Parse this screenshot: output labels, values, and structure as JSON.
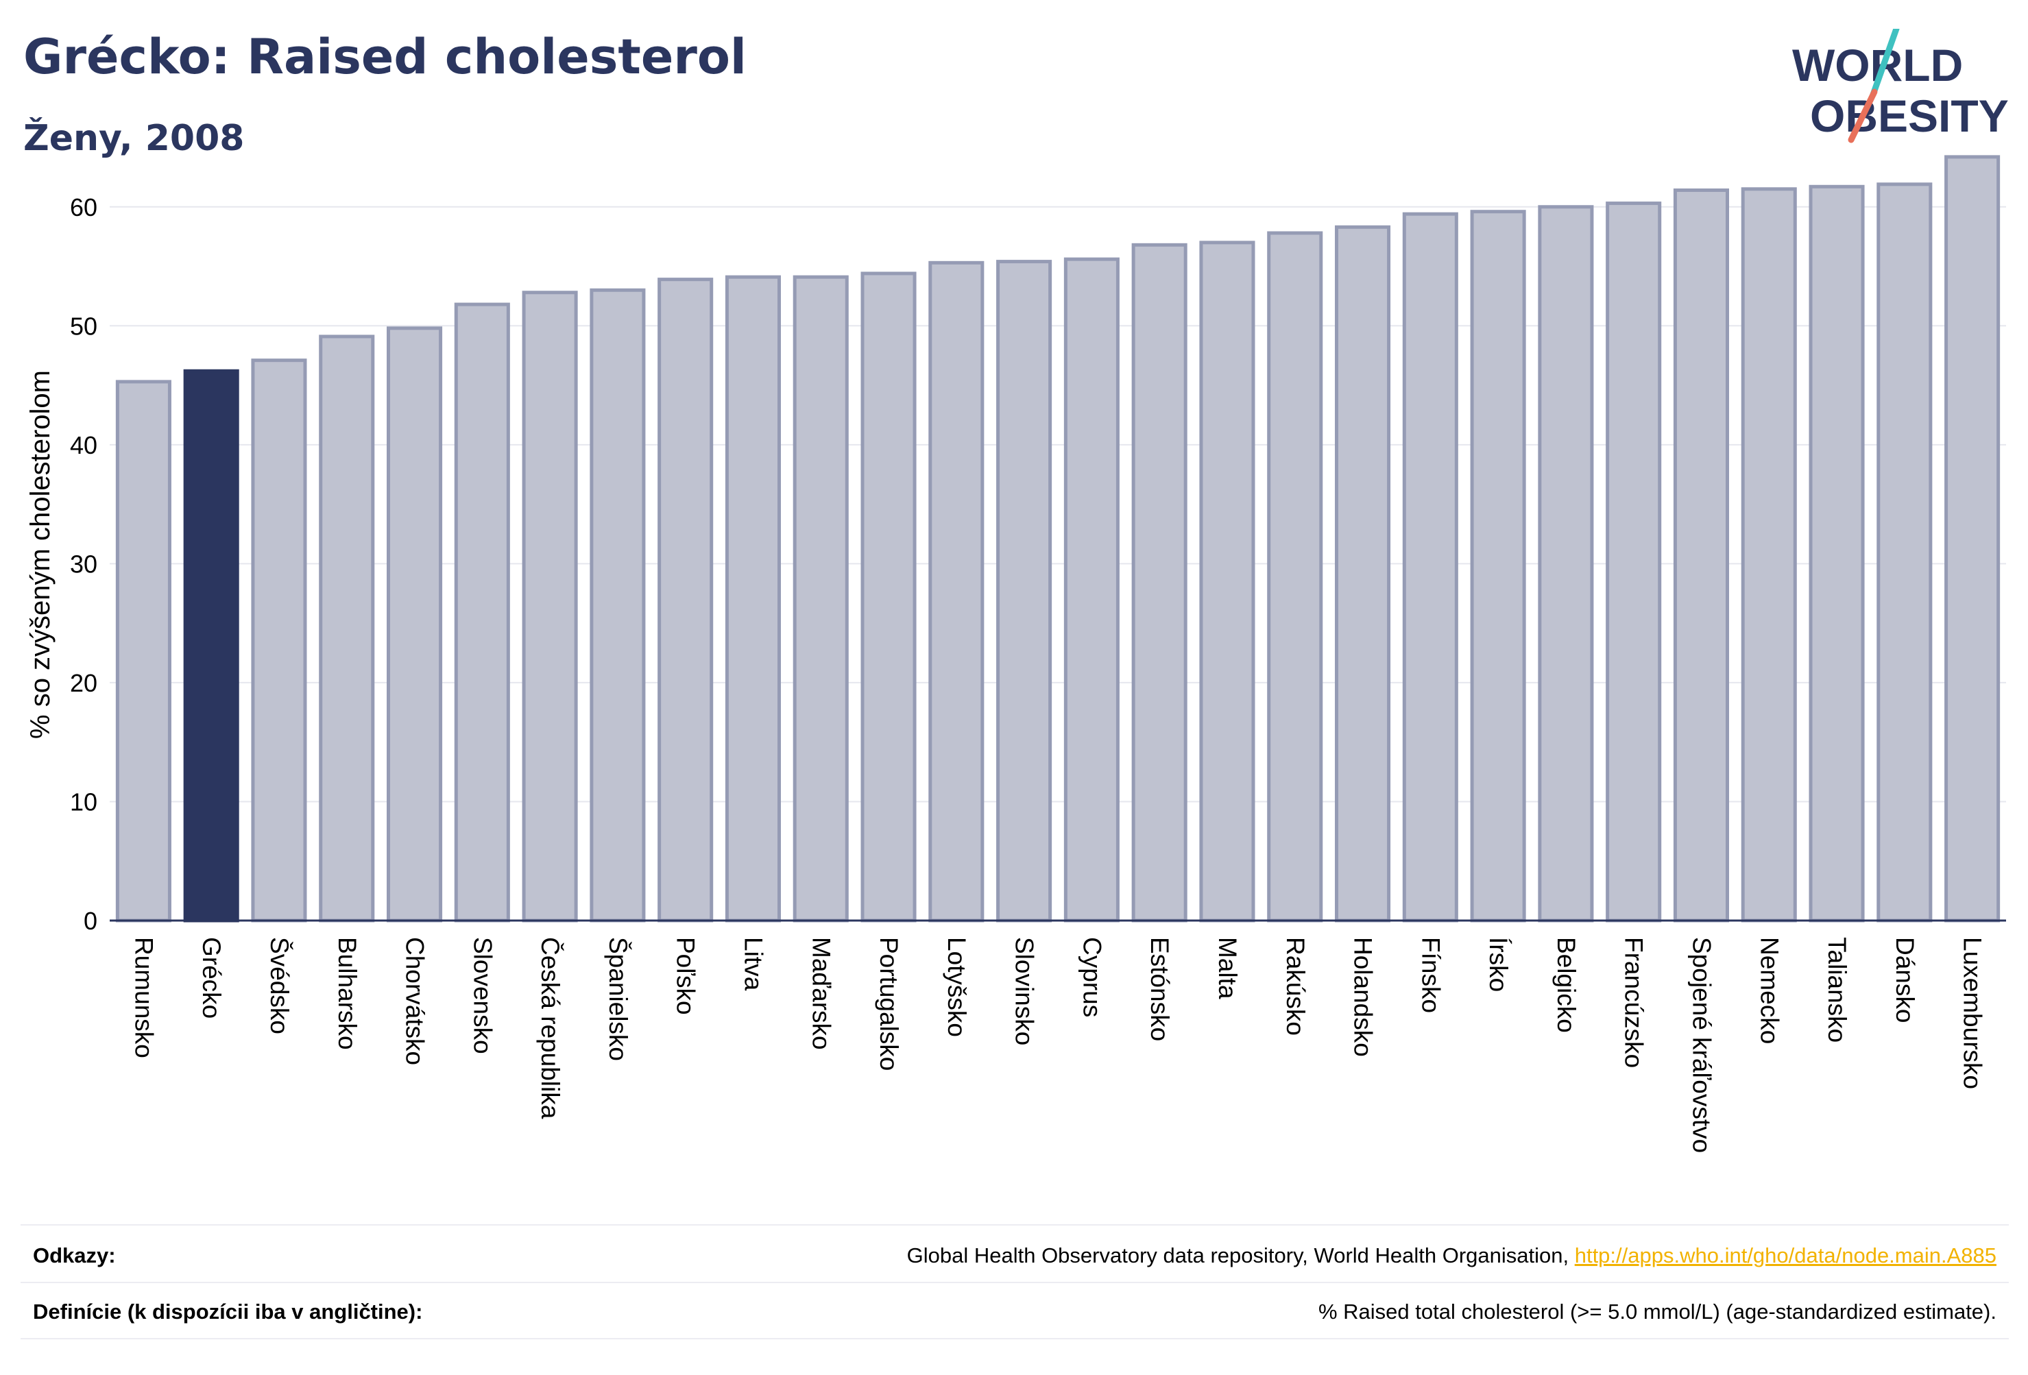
{
  "header": {
    "title": "Grécko: Raised cholesterol",
    "subtitle": "Ženy, 2008"
  },
  "logo": {
    "line1": "WORLD",
    "line2": "OBESITY"
  },
  "colors": {
    "navy": "#2b365f",
    "bar_fill": "#bfc2d0",
    "bar_stroke": "#959bb4",
    "highlight": "#2b365f",
    "logo_slash_top": "#3fc1c0",
    "logo_slash_bottom": "#e8705a",
    "link": "#f2b200"
  },
  "chart_data": {
    "type": "bar",
    "ylabel": "% so zvýšeným cholesterolom",
    "ylim": [
      0,
      65
    ],
    "yticks": [
      0,
      10,
      20,
      30,
      40,
      50,
      60
    ],
    "grid": true,
    "highlight_category": "Grécko",
    "categories": [
      "Rumunsko",
      "Grécko",
      "Švédsko",
      "Bulharsko",
      "Chorvátsko",
      "Slovensko",
      "Česká republika",
      "Španielsko",
      "Poľsko",
      "Litva",
      "Maďarsko",
      "Portugalsko",
      "Lotyšsko",
      "Slovinsko",
      "Cyprus",
      "Estónsko",
      "Malta",
      "Rakúsko",
      "Holandsko",
      "Fínsko",
      "Írsko",
      "Belgicko",
      "Francúzsko",
      "Spojené kráľovstvo",
      "Nemecko",
      "Taliansko",
      "Dánsko",
      "Luxembursko"
    ],
    "values": [
      45.3,
      46.2,
      47.1,
      49.1,
      49.8,
      51.8,
      52.8,
      53.0,
      53.9,
      54.1,
      54.1,
      54.4,
      55.3,
      55.4,
      55.6,
      56.8,
      57.0,
      57.8,
      58.3,
      59.4,
      59.6,
      60.0,
      60.3,
      61.4,
      61.5,
      61.7,
      61.9,
      64.2
    ]
  },
  "footer": {
    "references_label": "Odkazy:",
    "references_text": "Global Health Observatory data repository, World Health Organisation, ",
    "references_link": "http://apps.who.int/gho/data/node.main.A885",
    "definitions_label": "Definície (k dispozícii iba v angličtine):",
    "definitions_text": "% Raised total cholesterol (>= 5.0 mmol/L) (age-standardized estimate)."
  }
}
